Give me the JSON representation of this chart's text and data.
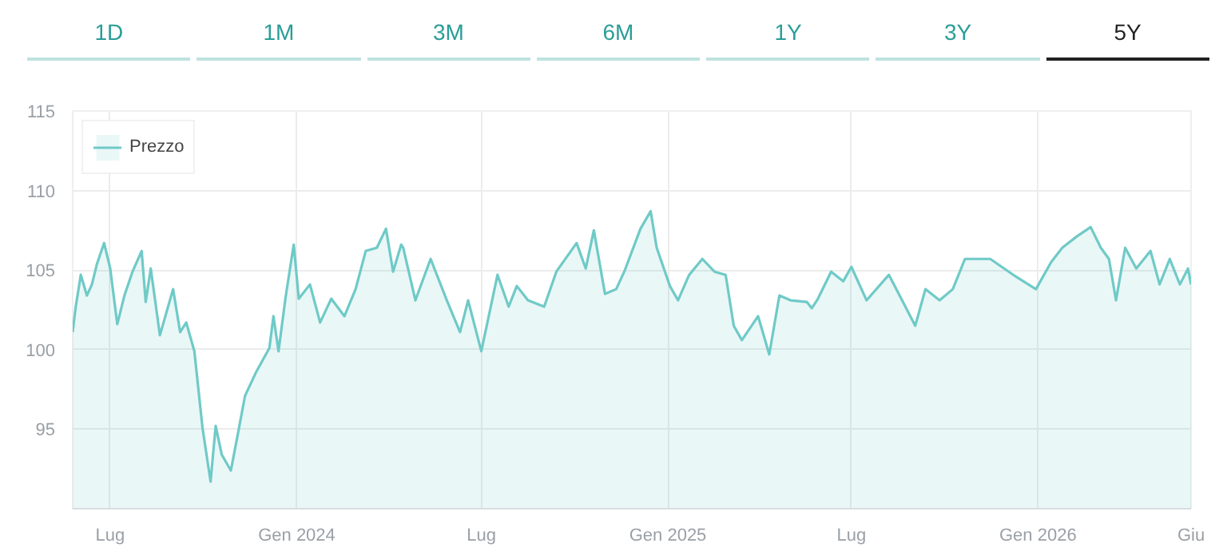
{
  "chart_data": {
    "type": "area",
    "annotations": [
      "1D",
      "1M",
      "3M",
      "6M",
      "1Y",
      "3Y",
      "5Y"
    ],
    "x": [
      "2023-05-25",
      "2023-05-28",
      "2023-06-02",
      "2023-06-08",
      "2023-06-13",
      "2023-06-18",
      "2023-06-25",
      "2023-07-01",
      "2023-07-08",
      "2023-07-15",
      "2023-07-23",
      "2023-08-01",
      "2023-08-05",
      "2023-08-10",
      "2023-08-19",
      "2023-09-01",
      "2023-09-08",
      "2023-09-14",
      "2023-09-22",
      "2023-09-30",
      "2023-10-08",
      "2023-10-13",
      "2023-10-19",
      "2023-10-28",
      "2023-11-03",
      "2023-11-11",
      "2023-11-22",
      "2023-12-05",
      "2023-12-09",
      "2023-12-14",
      "2023-12-21",
      "2023-12-29",
      "2024-01-03",
      "2024-01-14",
      "2024-01-24",
      "2024-02-04",
      "2024-02-17",
      "2024-02-28",
      "2024-03-09",
      "2024-03-20",
      "2024-03-29",
      "2024-04-05",
      "2024-04-13",
      "2024-04-15",
      "2024-04-27",
      "2024-05-12",
      "2024-05-28",
      "2024-06-10",
      "2024-06-18",
      "2024-07-01",
      "2024-07-17",
      "2024-07-28",
      "2024-08-05",
      "2024-08-16",
      "2024-09-01",
      "2024-09-13",
      "2024-10-03",
      "2024-10-12",
      "2024-10-20",
      "2024-10-31",
      "2024-11-11",
      "2024-11-19",
      "2024-12-05",
      "2024-12-15",
      "2024-12-21",
      "2025-01-03",
      "2025-01-11",
      "2025-01-22",
      "2025-02-04",
      "2025-02-16",
      "2025-02-27",
      "2025-03-07",
      "2025-03-15",
      "2025-03-31",
      "2025-04-11",
      "2025-04-21",
      "2025-05-02",
      "2025-05-18",
      "2025-05-23",
      "2025-05-29",
      "2025-06-11",
      "2025-06-23",
      "2025-07-01",
      "2025-07-16",
      "2025-08-07",
      "2025-08-20",
      "2025-09-02",
      "2025-09-12",
      "2025-09-26",
      "2025-10-09",
      "2025-10-21",
      "2025-11-15",
      "2025-12-10",
      "2025-12-30",
      "2026-01-14",
      "2026-01-25",
      "2026-02-08",
      "2026-02-22",
      "2026-03-04",
      "2026-03-12",
      "2026-03-19",
      "2026-03-28",
      "2026-04-08",
      "2026-04-22",
      "2026-05-01",
      "2026-05-11",
      "2026-05-21",
      "2026-05-29",
      "2026-06-01"
    ],
    "series": [
      {
        "name": "Prezzo",
        "color": "#6fcac7",
        "values": [
          101.1,
          102.7,
          104.7,
          103.4,
          104.1,
          105.4,
          106.7,
          105.1,
          101.6,
          103.4,
          104.9,
          106.2,
          103.0,
          105.1,
          100.9,
          103.8,
          101.1,
          101.7,
          99.9,
          95.1,
          91.7,
          95.2,
          93.4,
          92.4,
          94.4,
          97.1,
          98.6,
          100.1,
          102.1,
          99.9,
          103.3,
          106.6,
          103.2,
          104.1,
          101.7,
          103.2,
          102.1,
          103.8,
          106.2,
          106.4,
          107.6,
          104.9,
          106.6,
          106.4,
          103.1,
          105.7,
          103.1,
          101.1,
          103.1,
          99.9,
          104.7,
          102.7,
          104.0,
          103.1,
          102.7,
          104.9,
          106.7,
          105.1,
          107.5,
          103.5,
          103.8,
          104.9,
          107.6,
          108.7,
          106.4,
          104.0,
          103.1,
          104.7,
          105.7,
          104.9,
          104.7,
          101.5,
          100.6,
          102.1,
          99.7,
          103.4,
          103.1,
          103.0,
          102.6,
          103.2,
          104.9,
          104.3,
          105.2,
          103.1,
          104.7,
          103.1,
          101.5,
          103.8,
          103.1,
          103.8,
          105.7,
          105.7,
          104.6,
          103.8,
          105.5,
          106.4,
          107.1,
          107.7,
          106.4,
          105.7,
          103.1,
          106.4,
          105.1,
          106.2,
          104.1,
          105.7,
          104.1,
          105.1,
          104.1
        ]
      }
    ],
    "xlim": [
      "2023-05-25",
      "2026-06-01"
    ],
    "xticks": [
      {
        "value": "2023-07-01",
        "label": "Lug"
      },
      {
        "value": "2024-01-01",
        "label": "Gen 2024"
      },
      {
        "value": "2024-07-01",
        "label": "Lug"
      },
      {
        "value": "2025-01-01",
        "label": "Gen 2025"
      },
      {
        "value": "2025-07-01",
        "label": "Lug"
      },
      {
        "value": "2026-01-01",
        "label": "Gen 2026"
      },
      {
        "value": "2026-06-01",
        "label": "Giu"
      }
    ],
    "ylim": [
      90,
      115
    ],
    "yticks": [
      95,
      100,
      105,
      110,
      115
    ],
    "grid": true,
    "legend": "top left"
  }
}
